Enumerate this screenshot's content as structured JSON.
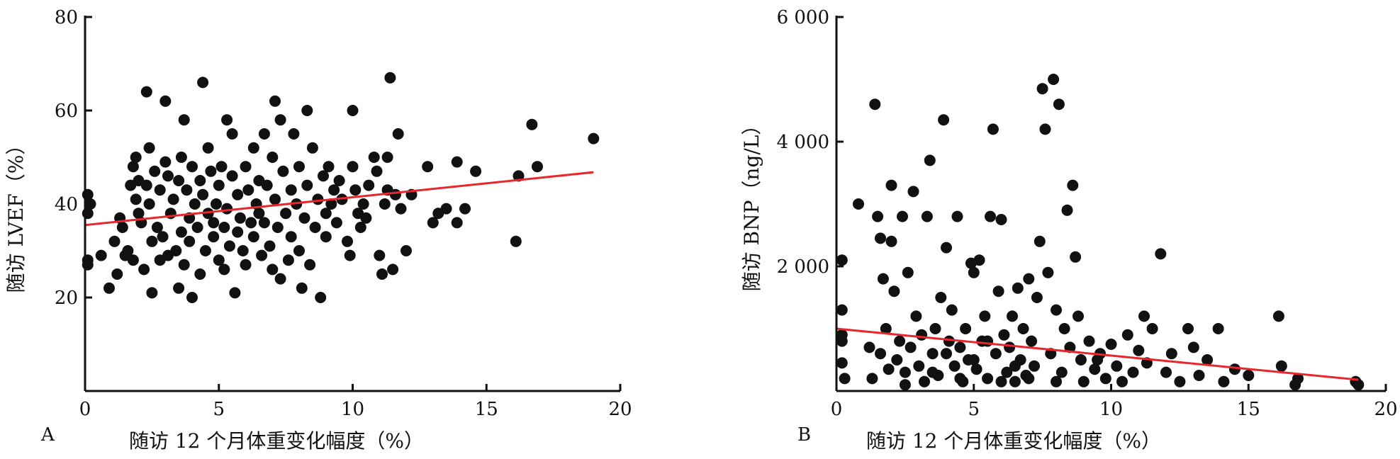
{
  "chart_data": [
    {
      "panel_label": "A",
      "type": "scatter",
      "title": "",
      "xlabel": "随访 12 个月体重变化幅度（%）",
      "ylabel": "随访 LVEF（%）",
      "xlim": [
        0,
        20
      ],
      "ylim": [
        0,
        80
      ],
      "x_ticks": [
        0,
        5,
        10,
        15,
        20
      ],
      "x_tick_labels": [
        "0",
        "5",
        "10",
        "15",
        "20"
      ],
      "y_ticks": [
        20,
        40,
        60,
        80
      ],
      "y_tick_labels": [
        "20",
        "40",
        "60",
        "80"
      ],
      "grid": false,
      "legend": "none",
      "colors": {
        "points": "#111111",
        "trend": "#e8262b"
      },
      "trend_line": {
        "x": [
          0,
          19
        ],
        "y": [
          35.5,
          46.8
        ]
      },
      "points": [
        [
          0.1,
          42
        ],
        [
          0.1,
          38
        ],
        [
          0.1,
          28
        ],
        [
          0.1,
          27
        ],
        [
          0.2,
          40
        ],
        [
          0.6,
          29
        ],
        [
          0.9,
          22
        ],
        [
          1.1,
          32
        ],
        [
          1.2,
          25
        ],
        [
          1.3,
          37
        ],
        [
          1.4,
          35
        ],
        [
          1.5,
          29
        ],
        [
          1.6,
          30
        ],
        [
          1.7,
          44
        ],
        [
          1.8,
          48
        ],
        [
          1.8,
          28
        ],
        [
          1.9,
          50
        ],
        [
          1.9,
          41
        ],
        [
          2.0,
          45
        ],
        [
          2.0,
          38
        ],
        [
          2.1,
          36
        ],
        [
          2.2,
          26
        ],
        [
          2.3,
          64
        ],
        [
          2.3,
          44
        ],
        [
          2.4,
          52
        ],
        [
          2.4,
          40
        ],
        [
          2.5,
          32
        ],
        [
          2.5,
          21
        ],
        [
          2.6,
          47
        ],
        [
          2.7,
          35
        ],
        [
          2.8,
          28
        ],
        [
          2.8,
          43
        ],
        [
          2.9,
          33
        ],
        [
          3.0,
          49
        ],
        [
          3.0,
          62
        ],
        [
          3.1,
          46
        ],
        [
          3.1,
          29
        ],
        [
          3.2,
          38
        ],
        [
          3.3,
          41
        ],
        [
          3.4,
          30
        ],
        [
          3.5,
          45
        ],
        [
          3.5,
          22
        ],
        [
          3.6,
          50
        ],
        [
          3.6,
          34
        ],
        [
          3.7,
          58
        ],
        [
          3.7,
          27
        ],
        [
          3.8,
          43
        ],
        [
          3.9,
          37
        ],
        [
          3.9,
          32
        ],
        [
          4.0,
          20
        ],
        [
          4.0,
          48
        ],
        [
          4.1,
          40
        ],
        [
          4.2,
          35
        ],
        [
          4.3,
          45
        ],
        [
          4.3,
          25
        ],
        [
          4.4,
          66
        ],
        [
          4.4,
          42
        ],
        [
          4.5,
          30
        ],
        [
          4.6,
          38
        ],
        [
          4.6,
          52
        ],
        [
          4.7,
          47
        ],
        [
          4.8,
          33
        ],
        [
          4.8,
          36
        ],
        [
          4.9,
          40
        ],
        [
          5.0,
          28
        ],
        [
          5.0,
          44
        ],
        [
          5.1,
          48
        ],
        [
          5.2,
          26
        ],
        [
          5.2,
          35
        ],
        [
          5.3,
          58
        ],
        [
          5.3,
          39
        ],
        [
          5.4,
          31
        ],
        [
          5.5,
          46
        ],
        [
          5.5,
          55
        ],
        [
          5.6,
          21
        ],
        [
          5.7,
          42
        ],
        [
          5.7,
          34
        ],
        [
          5.8,
          37
        ],
        [
          5.9,
          30
        ],
        [
          6.0,
          48
        ],
        [
          6.0,
          27
        ],
        [
          6.1,
          43
        ],
        [
          6.2,
          36
        ],
        [
          6.3,
          52
        ],
        [
          6.3,
          33
        ],
        [
          6.4,
          40
        ],
        [
          6.5,
          38
        ],
        [
          6.5,
          45
        ],
        [
          6.6,
          29
        ],
        [
          6.7,
          55
        ],
        [
          6.7,
          36
        ],
        [
          6.8,
          44
        ],
        [
          6.9,
          31
        ],
        [
          7.0,
          50
        ],
        [
          7.0,
          26
        ],
        [
          7.1,
          62
        ],
        [
          7.1,
          41
        ],
        [
          7.2,
          35
        ],
        [
          7.3,
          58
        ],
        [
          7.3,
          24
        ],
        [
          7.4,
          47
        ],
        [
          7.5,
          38
        ],
        [
          7.6,
          28
        ],
        [
          7.7,
          43
        ],
        [
          7.7,
          33
        ],
        [
          7.8,
          55
        ],
        [
          7.9,
          40
        ],
        [
          8.0,
          30
        ],
        [
          8.0,
          48
        ],
        [
          8.1,
          22
        ],
        [
          8.2,
          37
        ],
        [
          8.3,
          60
        ],
        [
          8.3,
          44
        ],
        [
          8.4,
          27
        ],
        [
          8.5,
          52
        ],
        [
          8.6,
          35
        ],
        [
          8.7,
          41
        ],
        [
          8.8,
          20
        ],
        [
          8.9,
          46
        ],
        [
          9.0,
          33
        ],
        [
          9.0,
          38
        ],
        [
          9.1,
          48
        ],
        [
          9.2,
          40
        ],
        [
          9.3,
          43
        ],
        [
          9.4,
          36
        ],
        [
          9.5,
          45
        ],
        [
          9.6,
          41
        ],
        [
          9.8,
          32
        ],
        [
          9.9,
          29
        ],
        [
          10.0,
          60
        ],
        [
          10.0,
          48
        ],
        [
          10.1,
          43
        ],
        [
          10.2,
          38
        ],
        [
          10.3,
          35
        ],
        [
          10.4,
          40
        ],
        [
          10.5,
          37
        ],
        [
          10.6,
          44
        ],
        [
          10.8,
          50
        ],
        [
          10.9,
          47
        ],
        [
          11.0,
          29
        ],
        [
          11.1,
          25
        ],
        [
          11.2,
          40
        ],
        [
          11.3,
          50
        ],
        [
          11.3,
          43
        ],
        [
          11.4,
          67
        ],
        [
          11.5,
          26
        ],
        [
          11.6,
          42
        ],
        [
          11.7,
          55
        ],
        [
          11.8,
          39
        ],
        [
          12.0,
          30
        ],
        [
          12.2,
          42
        ],
        [
          12.8,
          48
        ],
        [
          13.0,
          36
        ],
        [
          13.2,
          38
        ],
        [
          13.5,
          39
        ],
        [
          13.9,
          49
        ],
        [
          13.9,
          36
        ],
        [
          14.2,
          39
        ],
        [
          14.6,
          47
        ],
        [
          16.1,
          32
        ],
        [
          16.2,
          46
        ],
        [
          16.7,
          57
        ],
        [
          16.9,
          48
        ],
        [
          19.0,
          54
        ]
      ]
    },
    {
      "panel_label": "B",
      "type": "scatter",
      "title": "",
      "xlabel": "随访 12 个月体重变化幅度（%）",
      "ylabel": "随访 BNP（ng/L）",
      "xlim": [
        0,
        20
      ],
      "ylim": [
        0,
        6000
      ],
      "x_ticks": [
        0,
        5,
        10,
        15,
        20
      ],
      "x_tick_labels": [
        "0",
        "5",
        "10",
        "15",
        "20"
      ],
      "y_ticks": [
        2000,
        4000,
        6000
      ],
      "y_tick_labels": [
        "2 000",
        "4 000",
        "6 000"
      ],
      "grid": false,
      "legend": "none",
      "colors": {
        "points": "#111111",
        "trend": "#e8262b"
      },
      "trend_line": {
        "x": [
          0,
          19
        ],
        "y": [
          1000,
          180
        ]
      },
      "points": [
        [
          0.2,
          2100
        ],
        [
          0.2,
          1300
        ],
        [
          0.2,
          900
        ],
        [
          0.2,
          800
        ],
        [
          0.2,
          450
        ],
        [
          0.3,
          200
        ],
        [
          0.8,
          3000
        ],
        [
          1.2,
          700
        ],
        [
          1.3,
          200
        ],
        [
          1.4,
          4600
        ],
        [
          1.5,
          2800
        ],
        [
          1.6,
          2450
        ],
        [
          1.6,
          600
        ],
        [
          1.7,
          1800
        ],
        [
          1.8,
          1000
        ],
        [
          1.9,
          350
        ],
        [
          2.0,
          3300
        ],
        [
          2.0,
          2400
        ],
        [
          2.1,
          1600
        ],
        [
          2.2,
          500
        ],
        [
          2.3,
          800
        ],
        [
          2.4,
          2800
        ],
        [
          2.5,
          300
        ],
        [
          2.6,
          1900
        ],
        [
          2.7,
          700
        ],
        [
          2.8,
          3200
        ],
        [
          2.9,
          1200
        ],
        [
          3.0,
          400
        ],
        [
          3.1,
          900
        ],
        [
          3.2,
          150
        ],
        [
          3.3,
          2800
        ],
        [
          3.4,
          3700
        ],
        [
          3.5,
          600
        ],
        [
          3.6,
          1000
        ],
        [
          3.7,
          250
        ],
        [
          3.8,
          1500
        ],
        [
          3.9,
          4350
        ],
        [
          4.0,
          2300
        ],
        [
          4.1,
          800
        ],
        [
          4.2,
          1300
        ],
        [
          4.3,
          400
        ],
        [
          4.4,
          2800
        ],
        [
          4.5,
          700
        ],
        [
          4.6,
          150
        ],
        [
          4.7,
          1000
        ],
        [
          4.8,
          500
        ],
        [
          4.9,
          2050
        ],
        [
          5.0,
          1900
        ],
        [
          5.1,
          350
        ],
        [
          5.2,
          2100
        ],
        [
          5.3,
          800
        ],
        [
          5.4,
          1200
        ],
        [
          5.5,
          200
        ],
        [
          5.6,
          2800
        ],
        [
          5.7,
          4200
        ],
        [
          5.8,
          600
        ],
        [
          5.9,
          1600
        ],
        [
          6.0,
          2750
        ],
        [
          6.1,
          900
        ],
        [
          6.2,
          300
        ],
        [
          6.3,
          700
        ],
        [
          6.4,
          1200
        ],
        [
          6.5,
          150
        ],
        [
          6.6,
          1650
        ],
        [
          6.7,
          500
        ],
        [
          6.8,
          1000
        ],
        [
          6.9,
          250
        ],
        [
          7.0,
          1800
        ],
        [
          7.1,
          800
        ],
        [
          7.2,
          400
        ],
        [
          7.3,
          1500
        ],
        [
          7.4,
          2400
        ],
        [
          7.5,
          4850
        ],
        [
          7.6,
          4200
        ],
        [
          7.7,
          1900
        ],
        [
          7.8,
          600
        ],
        [
          7.9,
          5000
        ],
        [
          8.0,
          1300
        ],
        [
          8.1,
          4600
        ],
        [
          8.2,
          300
        ],
        [
          8.3,
          1000
        ],
        [
          8.4,
          2900
        ],
        [
          8.5,
          700
        ],
        [
          8.6,
          3300
        ],
        [
          8.7,
          2150
        ],
        [
          8.8,
          1200
        ],
        [
          8.9,
          500
        ],
        [
          9.0,
          150
        ],
        [
          9.2,
          800
        ],
        [
          9.4,
          350
        ],
        [
          9.6,
          600
        ],
        [
          9.8,
          200
        ],
        [
          10.0,
          750
        ],
        [
          10.2,
          400
        ],
        [
          10.4,
          150
        ],
        [
          10.6,
          900
        ],
        [
          10.8,
          300
        ],
        [
          11.0,
          650
        ],
        [
          11.2,
          1200
        ],
        [
          11.3,
          450
        ],
        [
          11.5,
          1000
        ],
        [
          11.8,
          2200
        ],
        [
          12.0,
          300
        ],
        [
          12.2,
          600
        ],
        [
          12.5,
          150
        ],
        [
          12.8,
          1000
        ],
        [
          13.0,
          700
        ],
        [
          13.2,
          250
        ],
        [
          13.5,
          500
        ],
        [
          13.9,
          1000
        ],
        [
          14.1,
          150
        ],
        [
          14.5,
          350
        ],
        [
          15.0,
          250
        ],
        [
          16.1,
          1200
        ],
        [
          16.2,
          400
        ],
        [
          16.7,
          100
        ],
        [
          16.8,
          200
        ],
        [
          18.9,
          150
        ],
        [
          19.0,
          100
        ],
        [
          4.5,
          200
        ],
        [
          5.0,
          500
        ],
        [
          5.5,
          800
        ],
        [
          6.0,
          150
        ],
        [
          3.5,
          300
        ],
        [
          2.5,
          100
        ],
        [
          4.0,
          600
        ],
        [
          6.5,
          400
        ],
        [
          7.0,
          200
        ],
        [
          8.0,
          150
        ],
        [
          9.5,
          500
        ]
      ]
    }
  ]
}
